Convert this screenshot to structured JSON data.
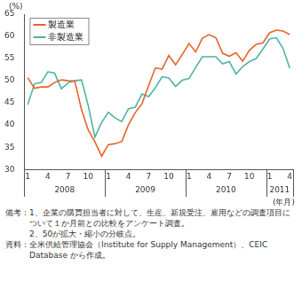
{
  "chart_data": {
    "type": "line",
    "y_label": "(%)",
    "x_label": "(年月)",
    "categories": [
      "1",
      null,
      null,
      "4",
      null,
      null,
      "7",
      null,
      null,
      "10",
      null,
      null,
      "1",
      null,
      null,
      "4",
      null,
      null,
      "7",
      null,
      null,
      "10",
      null,
      null,
      "1",
      null,
      null,
      "4",
      null,
      null,
      "7",
      null,
      null,
      "10",
      null,
      null,
      "1",
      null,
      null,
      "4"
    ],
    "groups": [
      {
        "label": "2008",
        "span": 12
      },
      {
        "label": "2009",
        "span": 12
      },
      {
        "label": "2010",
        "span": 12
      },
      {
        "label": "2011",
        "span": 4
      }
    ],
    "series": [
      {
        "name": "製造業",
        "color": "#e8632a",
        "values": [
          50.7,
          48.3,
          48.6,
          48.6,
          49.6,
          50.2,
          50.0,
          49.9,
          43.5,
          38.9,
          36.2,
          33.0,
          35.6,
          35.8,
          36.3,
          40.1,
          42.8,
          44.8,
          48.9,
          52.9,
          52.6,
          55.7,
          53.6,
          55.9,
          58.4,
          56.5,
          59.6,
          60.4,
          59.7,
          56.2,
          55.5,
          56.3,
          54.4,
          56.9,
          58.2,
          58.5,
          60.8,
          61.4,
          61.2,
          60.4
        ]
      },
      {
        "name": "非製造業",
        "color": "#4fb3a3",
        "values": [
          44.6,
          49.3,
          49.6,
          52.0,
          51.7,
          48.2,
          49.5,
          50.0,
          50.2,
          44.4,
          37.3,
          40.6,
          42.9,
          41.6,
          40.8,
          43.7,
          44.0,
          47.0,
          46.4,
          48.4,
          50.9,
          50.6,
          48.7,
          50.1,
          50.5,
          53.0,
          55.4,
          55.4,
          55.4,
          53.8,
          54.3,
          51.5,
          53.2,
          54.3,
          55.0,
          57.1,
          59.4,
          59.7,
          57.3,
          52.8
        ]
      }
    ],
    "ylim": [
      30,
      65
    ],
    "yticks": [
      30,
      35,
      40,
      45,
      50,
      55,
      60,
      65
    ],
    "grid": false,
    "legend": "upper left",
    "notes": {
      "label": "備考：",
      "items": [
        "1、企業の購買担当者に対して、生産、新規受注、雇用などの調査項目について１か月前との比較をアンケート調査。",
        "2、50が拡大・縮小の分岐点。"
      ]
    },
    "source": {
      "label": "資料：",
      "text": "全米供給管理協会（Institute for Supply Management）、CEIC Database から作成。"
    }
  }
}
